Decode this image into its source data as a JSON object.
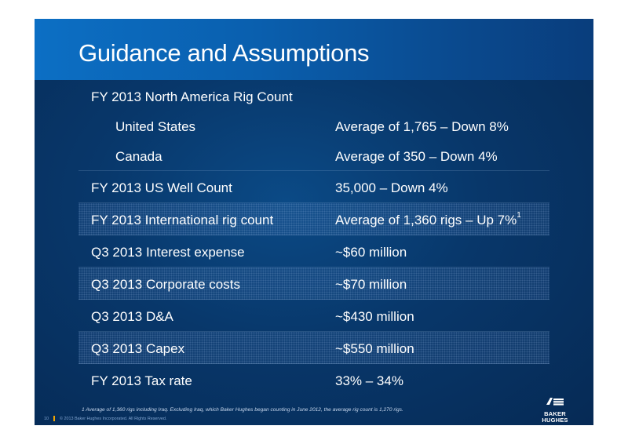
{
  "title": "Guidance and Assumptions",
  "rows": [
    {
      "label": "FY 2013 North America Rig Count",
      "value": ""
    },
    {
      "label": "United States",
      "value": "Average of 1,765 – Down 8%"
    },
    {
      "label": "Canada",
      "value": "Average of 350 – Down 4%"
    },
    {
      "label": "FY 2013 US Well Count",
      "value": "35,000 – Down 4%"
    },
    {
      "label": "FY 2013 International rig count",
      "value": "Average of 1,360 rigs – Up 7%",
      "sup": "1"
    },
    {
      "label": "Q3 2013 Interest expense",
      "value": "~$60 million"
    },
    {
      "label": "Q3 2013 Corporate costs",
      "value": "~$70 million"
    },
    {
      "label": "Q3 2013 D&A",
      "value": "~$430 million"
    },
    {
      "label": "Q3 2013 Capex",
      "value": "~$550 million"
    },
    {
      "label": "FY 2013 Tax rate",
      "value": "33% – 34%"
    }
  ],
  "footnote": "1 Average of 1,360 rigs including Iraq.  Excluding Iraq, which Baker Hughes began counting in June 2012, the average rig count is 1,270 rigs.",
  "page_number": "10",
  "copyright": "© 2013 Baker Hughes Incorporated. All Rights Reserved.",
  "logo": {
    "line1": "BAKER",
    "line2": "HUGHES"
  }
}
